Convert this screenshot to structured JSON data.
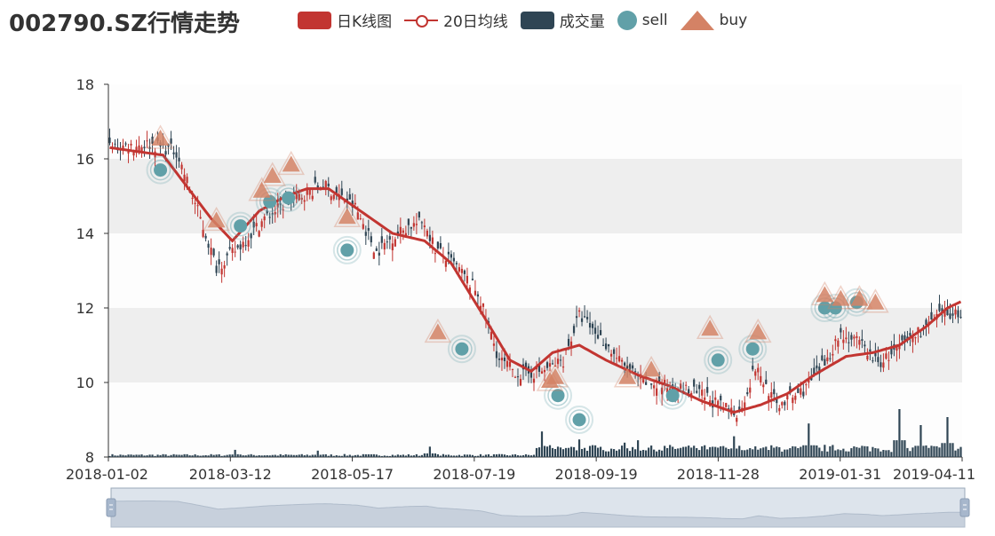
{
  "title": "002790.SZ行情走势",
  "legend": [
    {
      "label": "日K线图",
      "kind": "rect",
      "color": "#c23531"
    },
    {
      "label": "20日均线",
      "kind": "line",
      "color": "#c23531"
    },
    {
      "label": "成交量",
      "kind": "rect",
      "color": "#2f4554"
    },
    {
      "label": "sell",
      "kind": "dot",
      "color": "#61a0a8"
    },
    {
      "label": "buy",
      "kind": "tri",
      "color": "#d48265"
    }
  ],
  "colors": {
    "up": "#c23531",
    "down": "#2f4554",
    "ma": "#c23531",
    "sell": "#61a0a8",
    "buy": "#d48265",
    "band": "#eeeeee"
  },
  "chart_data": {
    "type": "candlestick",
    "title": "002790.SZ行情走势",
    "ylim": [
      8,
      18
    ],
    "yticks": [
      8,
      10,
      12,
      14,
      16,
      18
    ],
    "xticklabels": [
      "2018-01-02",
      "2018-03-12",
      "2018-05-17",
      "2018-07-19",
      "2018-09-19",
      "2018-11-28",
      "2019-01-31",
      "2019-04-11"
    ],
    "n_days": 320,
    "price_keypoints": [
      [
        0,
        16.3
      ],
      [
        15,
        16.4
      ],
      [
        25,
        16.2
      ],
      [
        33,
        14.6
      ],
      [
        40,
        13.1
      ],
      [
        48,
        13.6
      ],
      [
        58,
        14.4
      ],
      [
        66,
        14.8
      ],
      [
        74,
        15.1
      ],
      [
        80,
        15.3
      ],
      [
        86,
        15.0
      ],
      [
        92,
        14.7
      ],
      [
        100,
        13.5
      ],
      [
        106,
        13.9
      ],
      [
        112,
        14.2
      ],
      [
        118,
        14.3
      ],
      [
        122,
        13.6
      ],
      [
        130,
        13.1
      ],
      [
        138,
        12.4
      ],
      [
        146,
        10.6
      ],
      [
        154,
        10.2
      ],
      [
        162,
        10.3
      ],
      [
        170,
        10.6
      ],
      [
        176,
        11.8
      ],
      [
        184,
        11.2
      ],
      [
        192,
        10.5
      ],
      [
        200,
        10.0
      ],
      [
        208,
        9.9
      ],
      [
        216,
        9.8
      ],
      [
        224,
        9.6
      ],
      [
        230,
        9.3
      ],
      [
        236,
        9.2
      ],
      [
        242,
        10.4
      ],
      [
        250,
        9.4
      ],
      [
        256,
        9.6
      ],
      [
        260,
        9.8
      ],
      [
        266,
        10.3
      ],
      [
        274,
        11.3
      ],
      [
        282,
        11.0
      ],
      [
        288,
        10.5
      ],
      [
        294,
        10.8
      ],
      [
        300,
        11.2
      ],
      [
        306,
        11.5
      ],
      [
        312,
        11.8
      ],
      [
        320,
        11.9
      ]
    ],
    "ma20_keypoints": [
      [
        0,
        16.3
      ],
      [
        20,
        16.1
      ],
      [
        38,
        14.4
      ],
      [
        46,
        13.8
      ],
      [
        56,
        14.6
      ],
      [
        66,
        15.0
      ],
      [
        74,
        15.2
      ],
      [
        82,
        15.2
      ],
      [
        94,
        14.6
      ],
      [
        106,
        14.0
      ],
      [
        118,
        13.8
      ],
      [
        128,
        13.2
      ],
      [
        140,
        11.8
      ],
      [
        150,
        10.6
      ],
      [
        158,
        10.3
      ],
      [
        166,
        10.8
      ],
      [
        176,
        11.0
      ],
      [
        186,
        10.6
      ],
      [
        198,
        10.2
      ],
      [
        210,
        9.9
      ],
      [
        222,
        9.5
      ],
      [
        234,
        9.2
      ],
      [
        244,
        9.4
      ],
      [
        254,
        9.7
      ],
      [
        264,
        10.2
      ],
      [
        276,
        10.7
      ],
      [
        286,
        10.8
      ],
      [
        296,
        11.0
      ],
      [
        306,
        11.5
      ],
      [
        314,
        12.0
      ],
      [
        320,
        12.2
      ]
    ],
    "sell_points": [
      [
        19,
        15.7
      ],
      [
        49,
        14.2
      ],
      [
        60,
        14.85
      ],
      [
        67,
        14.95
      ],
      [
        89,
        13.55
      ],
      [
        132,
        10.9
      ],
      [
        168,
        9.65
      ],
      [
        176,
        9.0
      ],
      [
        211,
        9.65
      ],
      [
        228,
        10.6
      ],
      [
        241,
        10.9
      ],
      [
        268,
        12.0
      ],
      [
        272,
        12.0
      ],
      [
        280,
        12.15
      ]
    ],
    "buy_points": [
      [
        19,
        16.5
      ],
      [
        40,
        14.3
      ],
      [
        57,
        15.1
      ],
      [
        61,
        15.5
      ],
      [
        68,
        15.8
      ],
      [
        89,
        14.4
      ],
      [
        123,
        11.3
      ],
      [
        165,
        10.0
      ],
      [
        167,
        10.1
      ],
      [
        194,
        10.1
      ],
      [
        203,
        10.3
      ],
      [
        225,
        11.4
      ],
      [
        243,
        11.3
      ],
      [
        268,
        12.3
      ],
      [
        274,
        12.2
      ],
      [
        281,
        12.2
      ],
      [
        287,
        12.1
      ]
    ],
    "volume_max": 10,
    "volume_peaks": [
      [
        47,
        0.9
      ],
      [
        78,
        0.8
      ],
      [
        120,
        1.3
      ],
      [
        162,
        3.2
      ],
      [
        176,
        2.2
      ],
      [
        193,
        1.8
      ],
      [
        198,
        2.1
      ],
      [
        234,
        2.6
      ],
      [
        262,
        4.2
      ],
      [
        296,
        6.0
      ],
      [
        304,
        4.0
      ],
      [
        314,
        5.0
      ]
    ]
  },
  "slider": {
    "start": 0,
    "end": 100
  }
}
